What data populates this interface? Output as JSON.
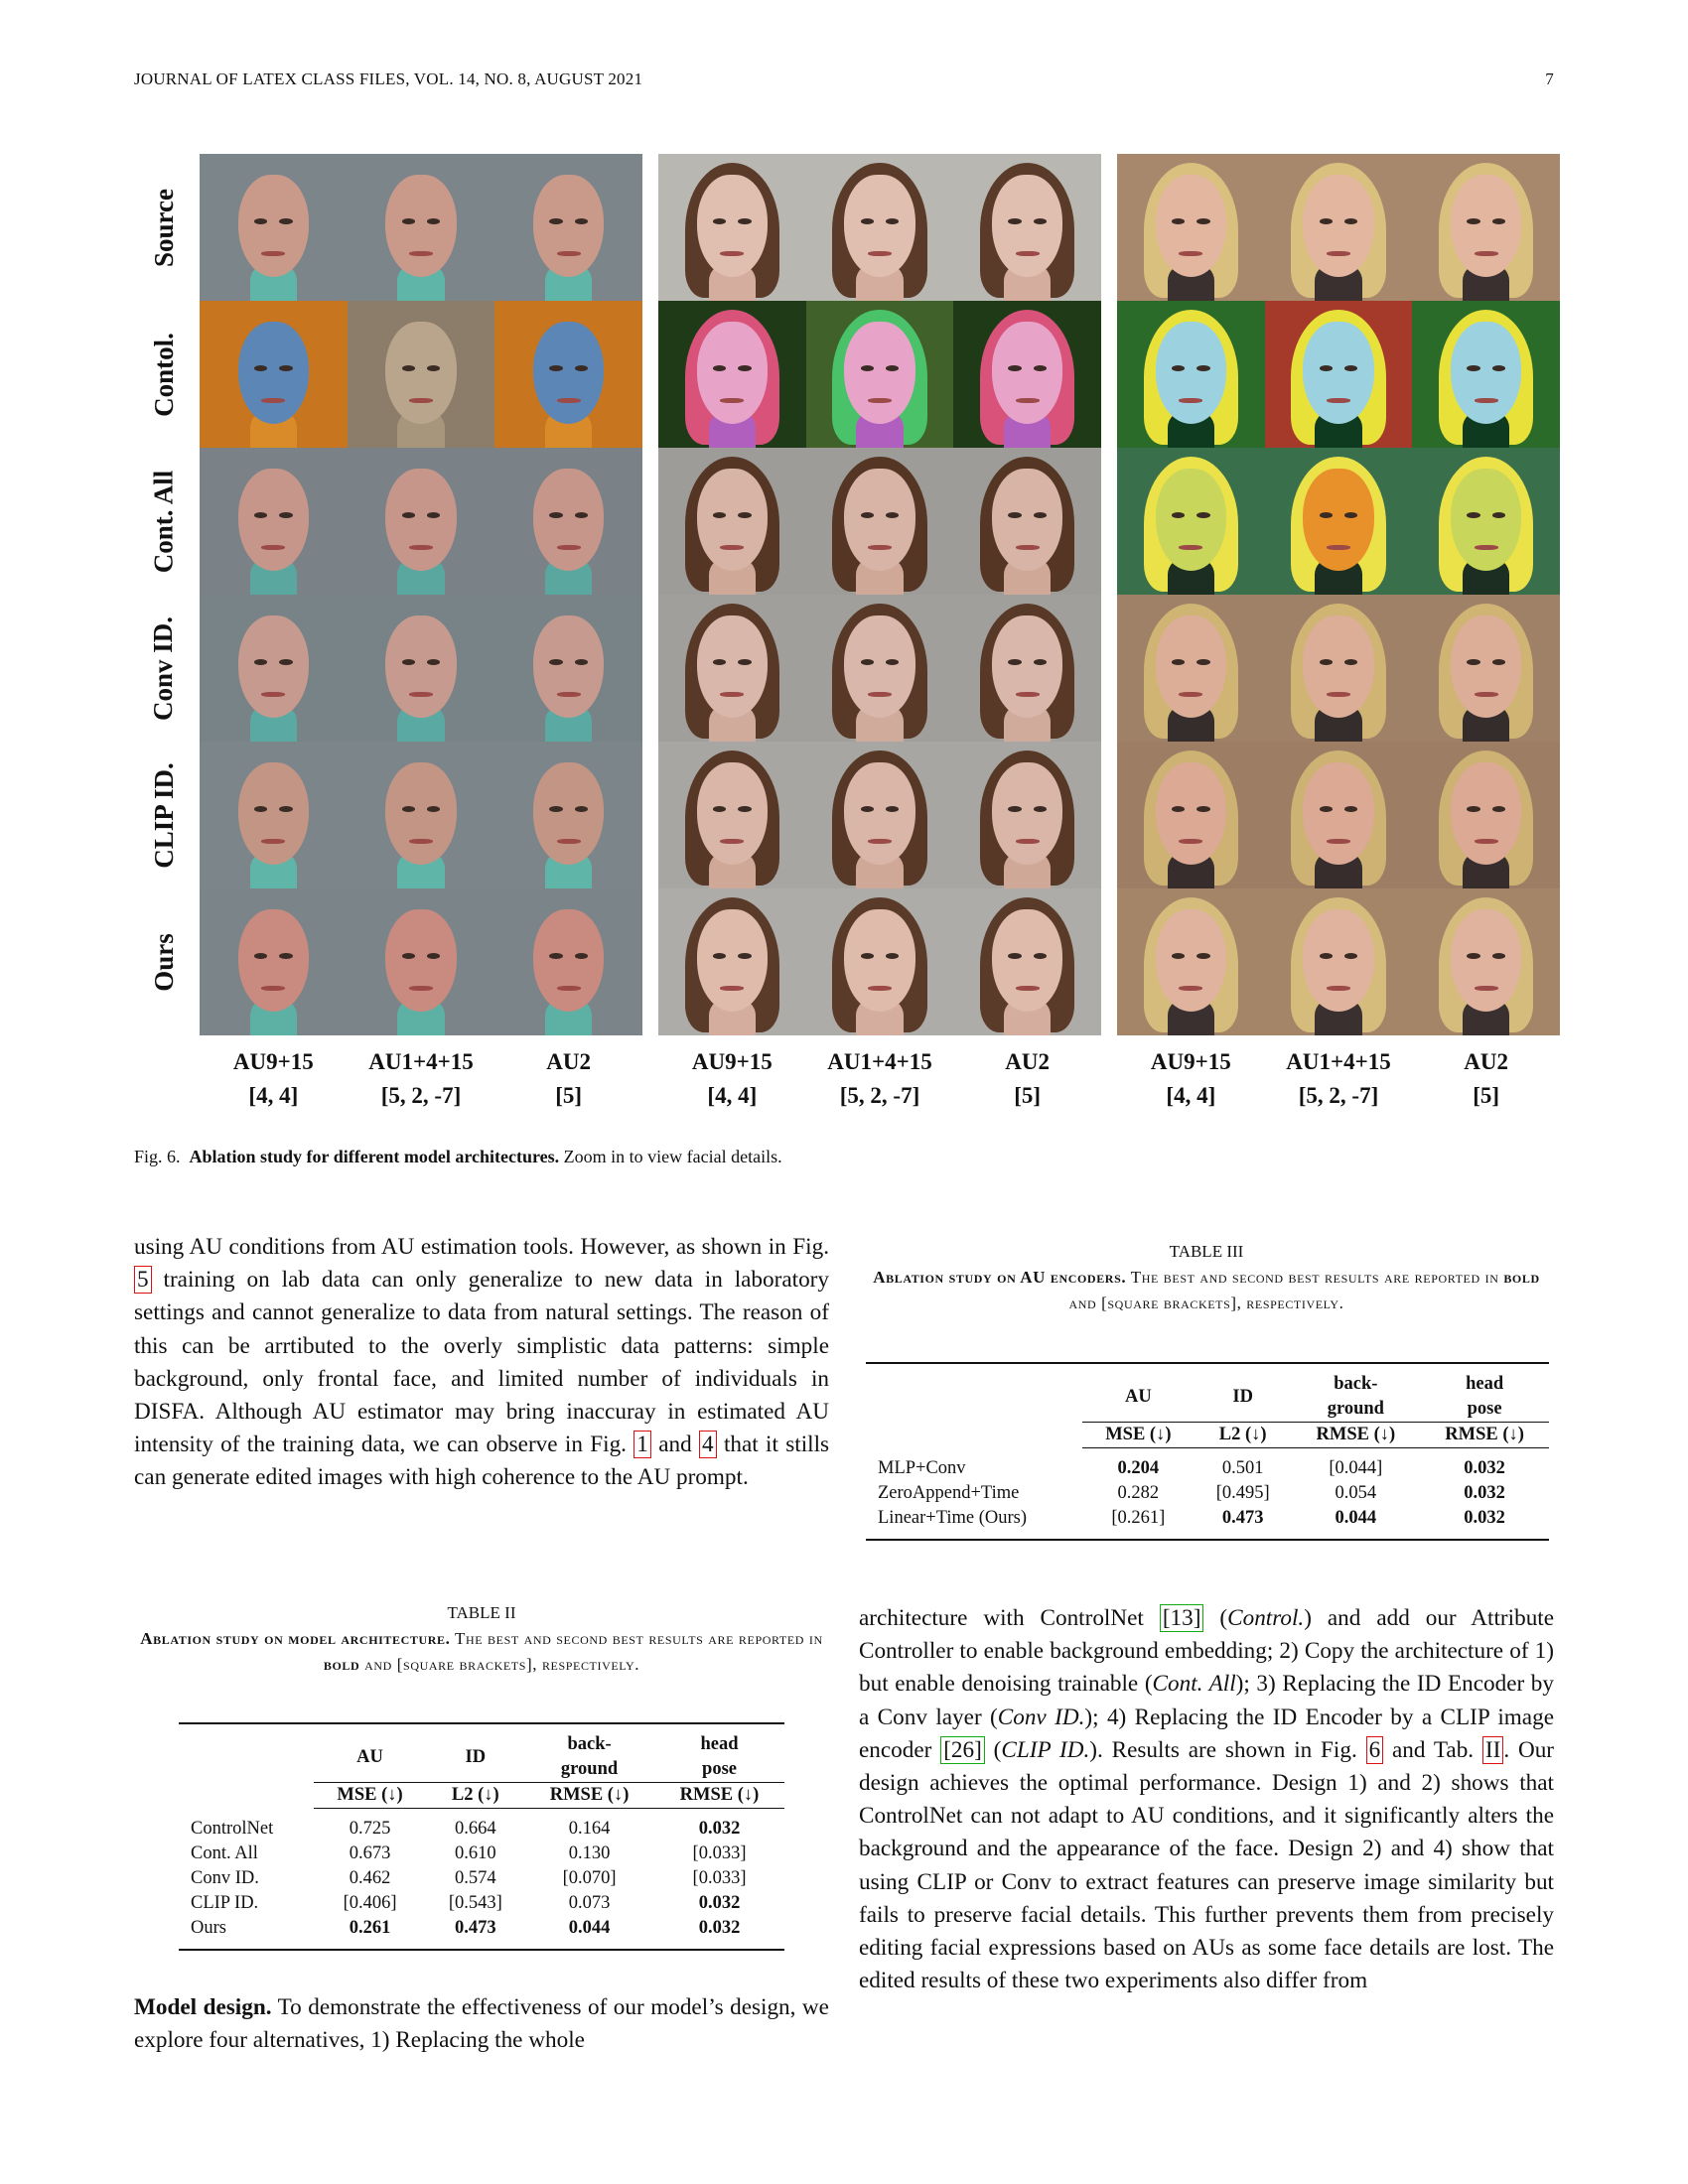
{
  "header": {
    "journal": "JOURNAL OF LATEX CLASS FILES, VOL. 14, NO. 8, AUGUST 2021",
    "page": "7"
  },
  "figure": {
    "row_labels": [
      "Source",
      "Contol.",
      "Cont. All",
      "Conv ID.",
      "CLIP ID.",
      "Ours"
    ],
    "col_labels": [
      {
        "au": "AU9+15",
        "vals": "[4, 4]"
      },
      {
        "au": "AU1+4+15",
        "vals": "[5, 2, -7]"
      },
      {
        "au": "AU2",
        "vals": "[5]"
      }
    ],
    "caption_prefix": "Fig. 6.",
    "caption_bold": "Ablation study for different model architectures.",
    "caption_rest": "Zoom in to view facial details."
  },
  "left_text": {
    "p1_a": "using AU conditions from AU estimation tools. However, as shown in Fig.",
    "p1_ref1": "5",
    "p1_b": "training on lab data can only generalize to new data in laboratory settings and cannot generalize to data from natural settings. The reason of this can be arrtibuted to the overly simplistic data patterns: simple background, only frontal face, and limited number of individuals in DISFA. Although AU estimator may bring inaccuray in estimated AU intensity of the training data, we can observe in Fig.",
    "p1_ref2": "1",
    "p1_and": "and",
    "p1_ref3": "4",
    "p1_c": "that it stills can generate edited images with high coherence to the AU prompt.",
    "p2_bold": "Model design.",
    "p2_text": "To demonstrate the effectiveness of our model’s design, we explore four alternatives, 1) Replacing the whole"
  },
  "table2": {
    "label": "TABLE II",
    "caption_bold": "Ablation study on model architecture.",
    "caption_rest_a": "The best and second best results are reported in",
    "caption_bold2": "bold",
    "caption_rest_b": "and [square brackets], respectively.",
    "headers": {
      "au": "AU",
      "id": "ID",
      "bg": "back-\nground",
      "hp": "head\npose"
    },
    "subheaders": {
      "au": "MSE (↓)",
      "id": "L2 (↓)",
      "bg": "RMSE (↓)",
      "hp": "RMSE (↓)"
    },
    "rows": [
      {
        "name": "ControlNet",
        "vals": [
          "0.725",
          "0.664",
          "0.164",
          "0.032"
        ],
        "bold": [
          false,
          false,
          false,
          true
        ]
      },
      {
        "name": "Cont. All",
        "vals": [
          "0.673",
          "0.610",
          "0.130",
          "[0.033]"
        ],
        "bold": [
          false,
          false,
          false,
          false
        ]
      },
      {
        "name": "Conv ID.",
        "vals": [
          "0.462",
          "0.574",
          "[0.070]",
          "[0.033]"
        ],
        "bold": [
          false,
          false,
          false,
          false
        ]
      },
      {
        "name": "CLIP ID.",
        "vals": [
          "[0.406]",
          "[0.543]",
          "0.073",
          "0.032"
        ],
        "bold": [
          false,
          false,
          false,
          true
        ]
      },
      {
        "name": "Ours",
        "vals": [
          "0.261",
          "0.473",
          "0.044",
          "0.032"
        ],
        "bold": [
          true,
          true,
          true,
          true
        ]
      }
    ]
  },
  "table3": {
    "label": "TABLE III",
    "caption_bold": "Ablation study on AU encoders.",
    "caption_rest_a": "The best and second best results are reported in",
    "caption_bold2": "bold",
    "caption_rest_b": "and [square brackets], respectively.",
    "headers": {
      "au": "AU",
      "id": "ID",
      "bg": "back-\nground",
      "hp": "head\npose"
    },
    "subheaders": {
      "au": "MSE (↓)",
      "id": "L2 (↓)",
      "bg": "RMSE (↓)",
      "hp": "RMSE (↓)"
    },
    "rows": [
      {
        "name": "MLP+Conv",
        "vals": [
          "0.204",
          "0.501",
          "[0.044]",
          "0.032"
        ],
        "bold": [
          true,
          false,
          false,
          true
        ]
      },
      {
        "name": "ZeroAppend+Time",
        "vals": [
          "0.282",
          "[0.495]",
          "0.054",
          "0.032"
        ],
        "bold": [
          false,
          false,
          false,
          true
        ]
      },
      {
        "name": "Linear+Time (Ours)",
        "vals": [
          "[0.261]",
          "0.473",
          "0.044",
          "0.032"
        ],
        "bold": [
          false,
          true,
          true,
          true
        ]
      }
    ]
  },
  "right_text": {
    "a": "architecture with ControlNet",
    "ref13": "[13]",
    "b": "(",
    "b_it": "Control.",
    "c": ") and add our Attribute Controller to enable background embedding; 2) Copy the architecture of 1) but enable denoising trainable (",
    "c_it": "Cont. All",
    "d": "); 3) Replacing the ID Encoder by a Conv layer (",
    "d_it": "Conv ID.",
    "e": "); 4) Replacing the ID Encoder by a CLIP image encoder",
    "ref26": "[26]",
    "f": "(",
    "f_it": "CLIP ID.",
    "g": "). Results are shown in Fig.",
    "ref6": "6",
    "h": "and Tab.",
    "refII": "II",
    "i": ". Our design achieves the optimal performance. Design 1) and 2) shows that ControlNet can not adapt to AU conditions, and it significantly alters the background and the appearance of the face. Design 2) and 4) show that using CLIP or Conv to extract features can preserve image similarity but fails to preserve facial details. This further prevents them from precisely editing facial expressions based on AUs as some face details are lost. The edited results of these two experiments also differ from"
  }
}
